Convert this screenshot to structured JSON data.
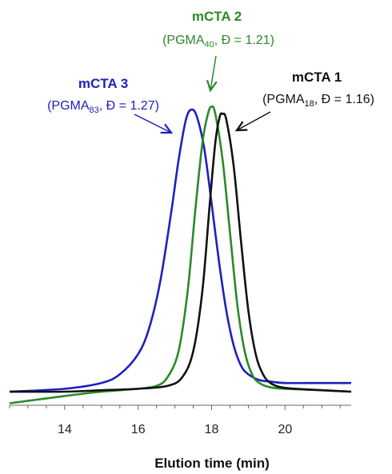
{
  "chart_data": {
    "type": "line",
    "title": "",
    "xlabel": "Elution time (min)",
    "ylabel": "",
    "xlim": [
      12.5,
      21.8
    ],
    "ylim": [
      0,
      1.05
    ],
    "x_ticks": [
      "14",
      "16",
      "18",
      "20"
    ],
    "grid": false,
    "legend": "none",
    "series": [
      {
        "key": "mcta3",
        "color": "#1f1fbf",
        "peak": 17.45,
        "baseline_left": 0.0,
        "baseline_right": 0.03,
        "x": [
          12.5,
          14.0,
          15.0,
          15.5,
          16.0,
          16.3,
          16.6,
          16.9,
          17.1,
          17.3,
          17.45,
          17.6,
          17.8,
          18.0,
          18.2,
          18.4,
          18.6,
          18.8,
          19.0,
          19.3,
          19.6,
          20.0,
          21.0,
          21.8
        ],
        "y": [
          0.0,
          0.01,
          0.03,
          0.06,
          0.13,
          0.22,
          0.38,
          0.62,
          0.8,
          0.94,
          0.975,
          0.95,
          0.84,
          0.65,
          0.45,
          0.28,
          0.16,
          0.09,
          0.06,
          0.04,
          0.035,
          0.03,
          0.03,
          0.03
        ]
      },
      {
        "key": "mcta2",
        "color": "#2a8a2a",
        "peak": 18.0,
        "baseline_left": -0.04,
        "baseline_right": 0.0,
        "x": [
          12.5,
          14.0,
          15.0,
          16.0,
          16.5,
          16.8,
          17.1,
          17.35,
          17.55,
          17.75,
          17.9,
          18.0,
          18.1,
          18.3,
          18.5,
          18.7,
          18.9,
          19.1,
          19.3,
          19.6,
          20.0,
          21.0,
          21.8
        ],
        "y": [
          -0.04,
          -0.015,
          0.0,
          0.01,
          0.02,
          0.05,
          0.14,
          0.35,
          0.62,
          0.86,
          0.96,
          0.985,
          0.96,
          0.8,
          0.55,
          0.3,
          0.14,
          0.06,
          0.03,
          0.015,
          0.01,
          0.005,
          0.0
        ]
      },
      {
        "key": "mcta1",
        "color": "#111111",
        "peak": 18.3,
        "baseline_left": 0.0,
        "baseline_right": 0.0,
        "x": [
          12.5,
          14.0,
          15.0,
          16.0,
          16.8,
          17.2,
          17.5,
          17.75,
          17.95,
          18.1,
          18.22,
          18.3,
          18.4,
          18.6,
          18.8,
          19.0,
          19.2,
          19.4,
          19.6,
          19.9,
          20.3,
          21.0,
          21.8
        ],
        "y": [
          0.0,
          0.0,
          0.005,
          0.01,
          0.02,
          0.05,
          0.14,
          0.35,
          0.65,
          0.86,
          0.95,
          0.96,
          0.94,
          0.78,
          0.52,
          0.28,
          0.13,
          0.06,
          0.03,
          0.015,
          0.01,
          0.005,
          0.0
        ]
      }
    ]
  },
  "annotations": {
    "mcta3": {
      "title": "mCTA 3",
      "sub_prefix": "(PGMA",
      "sub_subscript": "83",
      "sub_suffix": ", Đ = 1.27)",
      "color": "#1f1fbf"
    },
    "mcta2": {
      "title": "mCTA 2",
      "sub_prefix": "(PGMA",
      "sub_subscript": "40",
      "sub_suffix": ", Đ = 1.21)",
      "color": "#2a8a2a"
    },
    "mcta1": {
      "title": "mCTA 1",
      "sub_prefix": "(PGMA",
      "sub_subscript": "18",
      "sub_suffix": ", Đ = 1.16)",
      "color": "#111111"
    }
  }
}
